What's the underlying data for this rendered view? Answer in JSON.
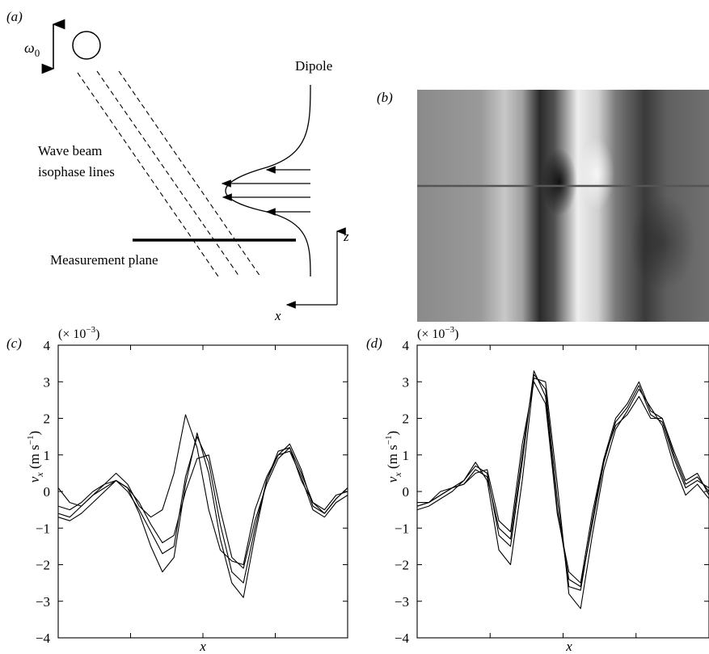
{
  "panel_a": {
    "tag": "(a)",
    "omega": "ω",
    "omega_sub": "0",
    "dipole": "Dipole",
    "beam_line1": "Wave beam",
    "beam_line2": "isophase lines",
    "measurement_plane": "Measurement plane",
    "axis_z": "z",
    "axis_x": "x"
  },
  "panel_b": {
    "tag": "(b)"
  },
  "panel_c": {
    "tag": "(c)",
    "scale": "(× 10",
    "scale_exp": "−3",
    "scale_close": ")",
    "ylabel_main": "v",
    "ylabel_sub": "x",
    "ylabel_unit": " (m s",
    "ylabel_exp": "−1",
    "ylabel_close": ")",
    "xlabel": "x"
  },
  "panel_d": {
    "tag": "(d)",
    "scale": "(× 10",
    "scale_exp": "−3",
    "scale_close": ")",
    "ylabel_main": "v",
    "ylabel_sub": "x",
    "ylabel_unit": " (m s",
    "ylabel_exp": "−1",
    "ylabel_close": ")",
    "xlabel": "x"
  },
  "chart_data": [
    {
      "type": "line",
      "panel": "c",
      "xlabel": "x",
      "ylabel": "v_x (m s^-1)",
      "ylim": [
        -4,
        4
      ],
      "yticks": [
        -4,
        -3,
        -2,
        -1,
        0,
        1,
        2,
        3,
        4
      ],
      "y_scale_note": "× 10^-3",
      "series": [
        {
          "x": [
            0,
            0.04,
            0.08,
            0.12,
            0.16,
            0.2,
            0.24,
            0.28,
            0.32,
            0.36,
            0.4,
            0.44,
            0.48,
            0.52,
            0.56,
            0.6,
            0.64,
            0.68,
            0.72,
            0.76,
            0.8,
            0.84,
            0.88,
            0.92,
            0.96,
            1.0
          ],
          "values": [
            0.1,
            -0.3,
            -0.4,
            -0.1,
            0.2,
            0.5,
            0.2,
            -0.4,
            -0.7,
            -0.5,
            0.5,
            2.1,
            1.2,
            -0.5,
            -1.6,
            -1.9,
            -2.0,
            -0.5,
            0.4,
            1.0,
            1.3,
            0.6,
            -0.4,
            -0.6,
            -0.2,
            0.1
          ]
        },
        {
          "x": [
            0,
            0.04,
            0.08,
            0.12,
            0.16,
            0.2,
            0.24,
            0.28,
            0.32,
            0.36,
            0.4,
            0.44,
            0.48,
            0.52,
            0.56,
            0.6,
            0.64,
            0.68,
            0.72,
            0.76,
            0.8,
            0.84,
            0.88,
            0.92,
            0.96,
            1.0
          ],
          "values": [
            -0.7,
            -0.8,
            -0.6,
            -0.3,
            0.0,
            0.3,
            0.1,
            -0.6,
            -1.5,
            -2.2,
            -1.8,
            0.2,
            1.6,
            0.5,
            -1.3,
            -2.5,
            -2.9,
            -1.2,
            0.3,
            1.1,
            1.2,
            0.3,
            -0.3,
            -0.5,
            -0.1,
            0.0
          ]
        },
        {
          "x": [
            0,
            0.04,
            0.08,
            0.12,
            0.16,
            0.2,
            0.24,
            0.28,
            0.32,
            0.36,
            0.4,
            0.44,
            0.48,
            0.52,
            0.56,
            0.6,
            0.64,
            0.68,
            0.72,
            0.76,
            0.8,
            0.84,
            0.88,
            0.92,
            0.96,
            1.0
          ],
          "values": [
            -0.6,
            -0.7,
            -0.4,
            -0.1,
            0.1,
            0.3,
            0.0,
            -0.5,
            -1.1,
            -1.7,
            -1.5,
            0.4,
            1.5,
            0.8,
            -0.9,
            -2.2,
            -2.5,
            -1.0,
            0.3,
            1.0,
            1.1,
            0.4,
            -0.5,
            -0.7,
            -0.3,
            -0.1
          ]
        },
        {
          "x": [
            0,
            0.04,
            0.08,
            0.12,
            0.16,
            0.2,
            0.24,
            0.28,
            0.32,
            0.36,
            0.4,
            0.44,
            0.48,
            0.52,
            0.56,
            0.6,
            0.64,
            0.68,
            0.72,
            0.76,
            0.8,
            0.84,
            0.88,
            0.92,
            0.96,
            1.0
          ],
          "values": [
            -0.4,
            -0.5,
            -0.3,
            0.0,
            0.2,
            0.3,
            0.1,
            -0.3,
            -0.9,
            -1.4,
            -1.2,
            0.0,
            0.9,
            1.0,
            -0.5,
            -1.8,
            -2.1,
            -0.8,
            0.2,
            0.9,
            1.2,
            0.5,
            -0.3,
            -0.6,
            -0.2,
            0.1
          ]
        }
      ]
    },
    {
      "type": "line",
      "panel": "d",
      "xlabel": "x",
      "ylabel": "v_x (m s^-1)",
      "ylim": [
        -4,
        4
      ],
      "yticks": [
        -4,
        -3,
        -2,
        -1,
        0,
        1,
        2,
        3,
        4
      ],
      "y_scale_note": "× 10^-3",
      "series": [
        {
          "x": [
            0,
            0.04,
            0.08,
            0.12,
            0.16,
            0.2,
            0.24,
            0.28,
            0.32,
            0.36,
            0.4,
            0.44,
            0.48,
            0.52,
            0.56,
            0.6,
            0.64,
            0.68,
            0.72,
            0.76,
            0.8,
            0.84,
            0.88,
            0.92,
            0.96,
            1.0
          ],
          "values": [
            -0.4,
            -0.3,
            -0.1,
            0.1,
            0.3,
            0.7,
            0.5,
            -1.2,
            -1.5,
            0.8,
            3.3,
            2.6,
            -0.5,
            -2.4,
            -2.6,
            -0.9,
            0.8,
            1.9,
            2.3,
            2.9,
            2.1,
            1.9,
            0.9,
            0.1,
            0.3,
            0.1
          ]
        },
        {
          "x": [
            0,
            0.04,
            0.08,
            0.12,
            0.16,
            0.2,
            0.24,
            0.28,
            0.32,
            0.36,
            0.4,
            0.44,
            0.48,
            0.52,
            0.56,
            0.6,
            0.64,
            0.68,
            0.72,
            0.76,
            0.8,
            0.84,
            0.88,
            0.92,
            0.96,
            1.0
          ],
          "values": [
            -0.5,
            -0.4,
            -0.2,
            0.0,
            0.3,
            0.8,
            0.3,
            -1.6,
            -2.0,
            0.3,
            3.1,
            3.0,
            0.2,
            -2.8,
            -3.2,
            -1.2,
            0.6,
            1.7,
            2.2,
            2.8,
            2.3,
            1.8,
            0.7,
            -0.1,
            0.2,
            -0.2
          ]
        },
        {
          "x": [
            0,
            0.04,
            0.08,
            0.12,
            0.16,
            0.2,
            0.24,
            0.28,
            0.32,
            0.36,
            0.4,
            0.44,
            0.48,
            0.52,
            0.56,
            0.6,
            0.64,
            0.68,
            0.72,
            0.76,
            0.8,
            0.84,
            0.88,
            0.92,
            0.96,
            1.0
          ],
          "values": [
            -0.4,
            -0.3,
            -0.1,
            0.1,
            0.2,
            0.6,
            0.4,
            -1.0,
            -1.3,
            1.0,
            3.2,
            2.8,
            -0.2,
            -2.6,
            -2.7,
            -0.8,
            0.9,
            2.0,
            2.4,
            3.0,
            2.2,
            2.0,
            1.0,
            0.2,
            0.4,
            0.0
          ]
        },
        {
          "x": [
            0,
            0.04,
            0.08,
            0.12,
            0.16,
            0.2,
            0.24,
            0.28,
            0.32,
            0.36,
            0.4,
            0.44,
            0.48,
            0.52,
            0.56,
            0.6,
            0.64,
            0.68,
            0.72,
            0.76,
            0.8,
            0.84,
            0.88,
            0.92,
            0.96,
            1.0
          ],
          "values": [
            -0.3,
            -0.3,
            0.0,
            0.1,
            0.2,
            0.5,
            0.6,
            -0.8,
            -1.1,
            1.3,
            3.0,
            2.4,
            -0.6,
            -2.2,
            -2.5,
            -0.6,
            0.9,
            1.8,
            2.1,
            2.6,
            2.0,
            2.0,
            1.1,
            0.3,
            0.5,
            -0.1
          ]
        }
      ]
    }
  ]
}
